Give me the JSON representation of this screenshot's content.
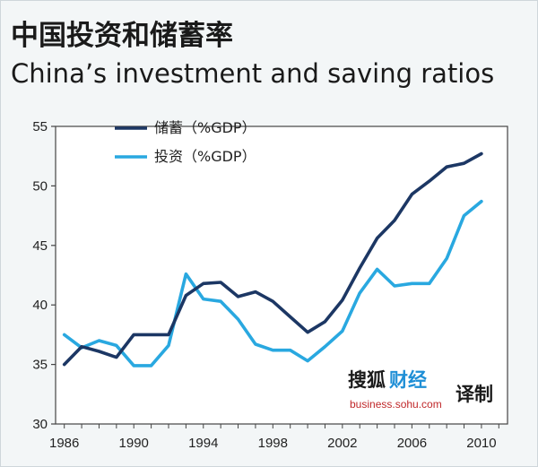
{
  "chart_data": {
    "type": "line",
    "title_cn": "中国投资和储蓄率",
    "title": "China’s investment and saving ratios",
    "xlabel": "",
    "ylabel": "",
    "xlim": [
      1985.5,
      2011.5
    ],
    "ylim": [
      30,
      55
    ],
    "x_ticks": [
      "1986",
      "1990",
      "1994",
      "1998",
      "2002",
      "2006",
      "2010"
    ],
    "y_ticks": [
      "30",
      "35",
      "40",
      "45",
      "50",
      "55"
    ],
    "x": [
      1986,
      1987,
      1988,
      1989,
      1990,
      1991,
      1992,
      1993,
      1994,
      1995,
      1996,
      1997,
      1998,
      1999,
      2000,
      2001,
      2002,
      2003,
      2004,
      2005,
      2006,
      2007,
      2008,
      2009,
      2010
    ],
    "series": [
      {
        "name": "储蓄（%GDP）",
        "color": "#1c3764",
        "values": [
          35.0,
          36.5,
          36.1,
          35.6,
          37.5,
          37.5,
          37.5,
          40.8,
          41.8,
          41.9,
          40.7,
          41.1,
          40.3,
          39.0,
          37.7,
          38.6,
          40.4,
          43.1,
          45.6,
          47.1,
          49.3,
          50.4,
          51.6,
          51.9,
          52.7
        ]
      },
      {
        "name": "投资（%GDP）",
        "color": "#29a8e0",
        "values": [
          37.5,
          36.4,
          37.0,
          36.6,
          34.9,
          34.9,
          36.6,
          42.6,
          40.5,
          40.3,
          38.8,
          36.7,
          36.2,
          36.2,
          35.3,
          36.5,
          37.8,
          41.0,
          43.0,
          41.6,
          41.8,
          41.8,
          43.9,
          47.5,
          48.7
        ]
      }
    ],
    "legend": "top-left"
  },
  "watermark": {
    "brand_a": "搜狐",
    "brand_b": "财经",
    "url": "business.sohu.com",
    "suffix": "译制",
    "brand_a_color": "#1a1a1a",
    "brand_b_color": "#1f8fd6",
    "suffix_color": "#1a1a1a"
  }
}
